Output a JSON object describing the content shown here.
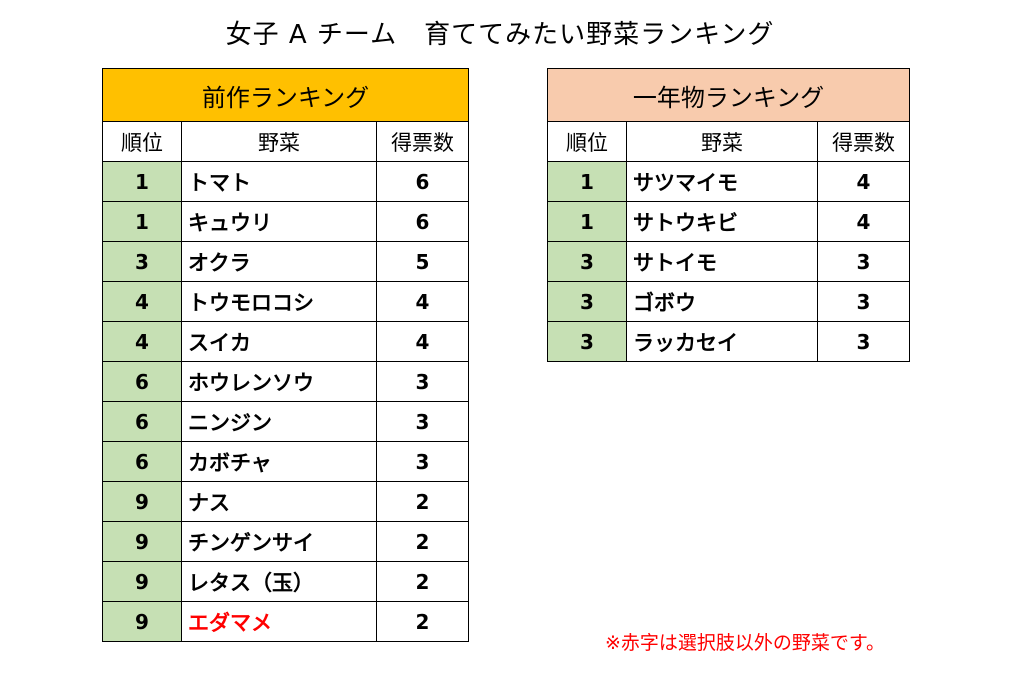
{
  "title": "女子 A チーム　育ててみたい野菜ランキング",
  "previous_ranking": {
    "heading": "前作ランキング",
    "columns": [
      "順位",
      "野菜",
      "得票数"
    ],
    "rows": [
      {
        "rank": "1",
        "vegetable": "トマト",
        "votes": "6"
      },
      {
        "rank": "1",
        "vegetable": "キュウリ",
        "votes": "6"
      },
      {
        "rank": "3",
        "vegetable": "オクラ",
        "votes": "5"
      },
      {
        "rank": "4",
        "vegetable": "トウモロコシ",
        "votes": "4"
      },
      {
        "rank": "4",
        "vegetable": "スイカ",
        "votes": "4"
      },
      {
        "rank": "6",
        "vegetable": "ホウレンソウ",
        "votes": "3"
      },
      {
        "rank": "6",
        "vegetable": "ニンジン",
        "votes": "3"
      },
      {
        "rank": "6",
        "vegetable": "カボチャ",
        "votes": "3"
      },
      {
        "rank": "9",
        "vegetable": "ナス",
        "votes": "2"
      },
      {
        "rank": "9",
        "vegetable": "チンゲンサイ",
        "votes": "2"
      },
      {
        "rank": "9",
        "vegetable": "レタス（玉）",
        "votes": "2"
      },
      {
        "rank": "9",
        "vegetable": "エダマメ",
        "votes": "2",
        "highlight_color": "#ff0000"
      }
    ]
  },
  "annual_ranking": {
    "heading": "一年物ランキング",
    "columns": [
      "順位",
      "野菜",
      "得票数"
    ],
    "rows": [
      {
        "rank": "1",
        "vegetable": "サツマイモ",
        "votes": "4"
      },
      {
        "rank": "1",
        "vegetable": "サトウキビ",
        "votes": "4"
      },
      {
        "rank": "3",
        "vegetable": "サトイモ",
        "votes": "3"
      },
      {
        "rank": "3",
        "vegetable": "ゴボウ",
        "votes": "3"
      },
      {
        "rank": "3",
        "vegetable": "ラッカセイ",
        "votes": "3"
      }
    ]
  },
  "footnote": "※赤字は選択肢以外の野菜です。",
  "colors": {
    "previous_header": "#ffc000",
    "annual_header": "#f8cbad",
    "rank_fill": "#c6e0b4",
    "note_red": "#ff0000"
  }
}
